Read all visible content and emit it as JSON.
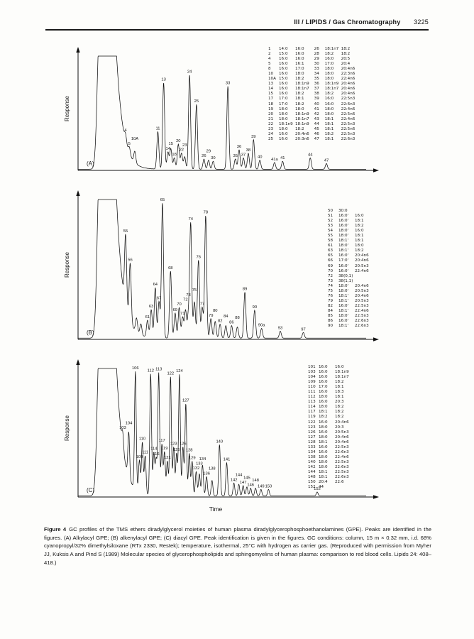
{
  "page": {
    "header": {
      "title": "III / LIPIDS / Gas Chromatography",
      "page_number": "3225"
    },
    "time_axis_label": "Time",
    "caption": {
      "label": "Figure 4",
      "text": "GC profiles of the TMS ethers diradylglycerol moieties of human plasma diradylglycerophosphoethanolamines (GPE). Peaks are identified in the figures. (A) Alkylacyl GPE; (B) alkenylacyl GPE; (C) diacyl GPE. Peak identification is given in the figures. GC conditions: column, 15 m × 0.32 mm, i.d. 68% cyanopropyl/32% dimethylsiloxane (RTx 2330, Restek); temperature, isothermal, 25°C with hydrogen as carrier gas. (Reproduced with permission from Myher JJ, Kuksis A and Pind S (1989) Molecular species of glycerophospholipids and sphingomyelins of human plasma: comparison to red blood cells. Lipids 24: 408–418.)"
    }
  },
  "chart_data": [
    {
      "type": "line",
      "panel": "A",
      "panel_label": "(A)",
      "series_name": "Alkylacyl GPE",
      "ylabel": "Response",
      "xlabel": "Time",
      "peak_sigma": 0.0035,
      "peaks_schema": [
        "x_fraction_of_axis",
        "height_fraction_of_plot",
        "peak_number"
      ],
      "peaks": [
        [
          0.165,
          0.07,
          "4"
        ],
        [
          0.178,
          0.06,
          "5"
        ],
        [
          0.197,
          0.1,
          "10A"
        ],
        [
          0.277,
          0.33,
          "11"
        ],
        [
          0.297,
          0.76,
          "13"
        ],
        [
          0.312,
          0.15,
          "14"
        ],
        [
          0.322,
          0.18,
          "15"
        ],
        [
          0.334,
          0.1,
          "18"
        ],
        [
          0.348,
          0.22,
          "20"
        ],
        [
          0.359,
          0.14,
          "22"
        ],
        [
          0.37,
          0.11,
          "23"
        ],
        [
          0.387,
          0.83,
          "24"
        ],
        [
          0.411,
          0.57,
          "25"
        ],
        [
          0.437,
          0.09,
          "26"
        ],
        [
          0.453,
          0.08,
          "29"
        ],
        [
          0.469,
          0.07,
          "30"
        ],
        [
          0.52,
          0.73,
          "33"
        ],
        [
          0.546,
          0.09,
          "35"
        ],
        [
          0.559,
          0.17,
          "36"
        ],
        [
          0.574,
          0.1,
          "37"
        ],
        [
          0.591,
          0.14,
          "38"
        ],
        [
          0.609,
          0.26,
          "39"
        ],
        [
          0.631,
          0.08,
          "40"
        ],
        [
          0.682,
          0.06,
          "41a"
        ],
        [
          0.71,
          0.07,
          "41"
        ],
        [
          0.806,
          0.1,
          "44"
        ],
        [
          0.862,
          0.05,
          "47"
        ]
      ],
      "legend": {
        "columns": [
          [
            [
              "1",
              "14:0",
              "16:0"
            ],
            [
              "2",
              "15:0",
              "16:0"
            ],
            [
              "4",
              "16:0",
              "16:0"
            ],
            [
              "5",
              "16:0",
              "16:1"
            ],
            [
              "8",
              "16:0",
              "17:0"
            ],
            [
              "10",
              "16:0",
              "18:0"
            ],
            [
              "10A",
              "15:0",
              "18:2"
            ],
            [
              "13",
              "16:0",
              "18:1n9"
            ],
            [
              "14",
              "16:0",
              "18:1n7"
            ],
            [
              "15",
              "16:0",
              "18:2"
            ],
            [
              "17",
              "17:0",
              "18:1"
            ],
            [
              "18",
              "17:0",
              "18:2"
            ],
            [
              "19",
              "18:0",
              "18:0"
            ],
            [
              "20",
              "18:0",
              "18:1n9"
            ],
            [
              "21",
              "18:0",
              "18:1n7"
            ],
            [
              "22",
              "18:1n9",
              "18:1n9"
            ],
            [
              "23",
              "18:0",
              "18:2"
            ],
            [
              "24",
              "16:0",
              "20:4n6"
            ],
            [
              "25",
              "16:0",
              "20:3n6"
            ]
          ],
          [
            [
              "26",
              "18:1n7",
              "18:2"
            ],
            [
              "28",
              "18:2",
              "18:2"
            ],
            [
              "29",
              "16:0",
              "20:5"
            ],
            [
              "30",
              "17:0",
              "20:4"
            ],
            [
              "33",
              "18:0",
              "20:4n6"
            ],
            [
              "34",
              "18:0",
              "22:3n6"
            ],
            [
              "35",
              "18:0",
              "22:4n6"
            ],
            [
              "36",
              "18:1n9",
              "20:4n6"
            ],
            [
              "37",
              "18:1n7",
              "20:4n6"
            ],
            [
              "38",
              "18:2",
              "20:4n6"
            ],
            [
              "39",
              "16:0",
              "22:5n3"
            ],
            [
              "40",
              "16:0",
              "22:6n3"
            ],
            [
              "41",
              "18:0",
              "22:4n6"
            ],
            [
              "42",
              "18:0",
              "22:5n6"
            ],
            [
              "43",
              "18:1",
              "22:4n6"
            ],
            [
              "44",
              "18:1",
              "22:5n3"
            ],
            [
              "45",
              "18:1",
              "22:5n6"
            ],
            [
              "46",
              "18:2",
              "22:5n3"
            ],
            [
              "47",
              "18:1",
              "22:6n3"
            ]
          ]
        ]
      }
    },
    {
      "type": "line",
      "panel": "B",
      "panel_label": "(B)",
      "series_name": "Alkenylacyl GPE",
      "ylabel": "Response",
      "xlabel": "Time",
      "peak_sigma": 0.0035,
      "peaks_schema": [
        "x_fraction_of_axis",
        "height_fraction_of_plot",
        "peak_number"
      ],
      "peaks": [
        [
          0.165,
          0.5,
          "55"
        ],
        [
          0.181,
          0.42,
          "56"
        ],
        [
          0.203,
          0.1,
          ""
        ],
        [
          0.218,
          0.08,
          ""
        ],
        [
          0.241,
          0.12,
          "61"
        ],
        [
          0.254,
          0.2,
          "63"
        ],
        [
          0.268,
          0.36,
          "64"
        ],
        [
          0.281,
          0.26,
          "67"
        ],
        [
          0.293,
          0.97,
          "65"
        ],
        [
          0.321,
          0.48,
          "68"
        ],
        [
          0.337,
          0.18,
          "69"
        ],
        [
          0.351,
          0.22,
          "70"
        ],
        [
          0.363,
          0.15,
          "71"
        ],
        [
          0.373,
          0.2,
          "72"
        ],
        [
          0.383,
          0.16,
          "73"
        ],
        [
          0.391,
          0.82,
          "74"
        ],
        [
          0.404,
          0.26,
          "75"
        ],
        [
          0.418,
          0.56,
          "76"
        ],
        [
          0.431,
          0.22,
          "77"
        ],
        [
          0.443,
          0.88,
          "78"
        ],
        [
          0.461,
          0.14,
          "79"
        ],
        [
          0.476,
          0.12,
          "80"
        ],
        [
          0.493,
          0.1,
          "82"
        ],
        [
          0.513,
          0.09,
          "84"
        ],
        [
          0.533,
          0.09,
          "86"
        ],
        [
          0.553,
          0.08,
          "88"
        ],
        [
          0.579,
          0.33,
          "89"
        ],
        [
          0.613,
          0.2,
          "90"
        ],
        [
          0.637,
          0.07,
          "90a"
        ],
        [
          0.702,
          0.05,
          "93"
        ],
        [
          0.782,
          0.04,
          "97"
        ]
      ],
      "legend": {
        "columns": [
          [
            [
              "50",
              "30:0",
              ""
            ],
            [
              "51",
              "16:0'",
              "16:0"
            ],
            [
              "52",
              "16:0'",
              "18:1"
            ],
            [
              "53",
              "16:0'",
              "18:2"
            ],
            [
              "54",
              "18:0'",
              "16:0"
            ],
            [
              "55",
              "18:0'",
              "18:1"
            ],
            [
              "58",
              "18:1'",
              "18:1"
            ],
            [
              "61",
              "18:0'",
              "18:0"
            ],
            [
              "63",
              "18:1'",
              "18:2"
            ],
            [
              "65",
              "16:0'",
              "20:4n6"
            ],
            [
              "66",
              "17:0'",
              "20:4n6"
            ],
            [
              "69",
              "16:0'",
              "20:5n3"
            ],
            [
              "70",
              "16:0'",
              "22:4n6"
            ],
            [
              "72",
              "38(0,1)",
              ""
            ],
            [
              "73",
              "38(1,1)",
              ""
            ],
            [
              "74",
              "18:0'",
              "20:4n6"
            ],
            [
              "75",
              "18:0'",
              "20:5n3"
            ],
            [
              "76",
              "18:1'",
              "20:4n6"
            ],
            [
              "79",
              "18:1'",
              "20:5n3"
            ],
            [
              "82",
              "16:0'",
              "22:5n3"
            ],
            [
              "84",
              "18:1'",
              "22:4n6"
            ],
            [
              "85",
              "18:0'",
              "22:5n3"
            ],
            [
              "86",
              "16:0'",
              "22:6n3"
            ],
            [
              "90",
              "18:1'",
              "22:6n3"
            ]
          ]
        ]
      }
    },
    {
      "type": "line",
      "panel": "C",
      "panel_label": "(C)",
      "series_name": "Diacyl GPE",
      "ylabel": "Response",
      "xlabel": "Time",
      "peak_sigma": 0.003,
      "peaks_schema": [
        "x_fraction_of_axis",
        "height_fraction_of_plot",
        "peak_number"
      ],
      "peaks": [
        [
          0.155,
          0.12,
          "103"
        ],
        [
          0.176,
          0.35,
          "104"
        ],
        [
          0.199,
          0.92,
          "106"
        ],
        [
          0.213,
          0.25,
          "109"
        ],
        [
          0.223,
          0.4,
          "110"
        ],
        [
          0.233,
          0.3,
          "111"
        ],
        [
          0.252,
          0.95,
          "112"
        ],
        [
          0.263,
          0.33,
          "114"
        ],
        [
          0.271,
          0.28,
          "116"
        ],
        [
          0.28,
          0.96,
          "113"
        ],
        [
          0.291,
          0.4,
          "117"
        ],
        [
          0.3,
          0.34,
          "119"
        ],
        [
          0.31,
          0.27,
          "121"
        ],
        [
          0.321,
          0.93,
          "122"
        ],
        [
          0.332,
          0.38,
          "123"
        ],
        [
          0.342,
          0.33,
          "125"
        ],
        [
          0.352,
          0.95,
          "124"
        ],
        [
          0.364,
          0.38,
          "126"
        ],
        [
          0.374,
          0.72,
          "127"
        ],
        [
          0.386,
          0.33,
          "128"
        ],
        [
          0.396,
          0.27,
          "129"
        ],
        [
          0.41,
          0.19,
          "132"
        ],
        [
          0.421,
          0.17,
          "133"
        ],
        [
          0.432,
          0.24,
          "134"
        ],
        [
          0.446,
          0.15,
          "136"
        ],
        [
          0.465,
          0.12,
          "138"
        ],
        [
          0.491,
          0.4,
          "140"
        ],
        [
          0.516,
          0.26,
          "141"
        ],
        [
          0.541,
          0.1,
          "142"
        ],
        [
          0.558,
          0.09,
          "144"
        ],
        [
          0.573,
          0.08,
          "147"
        ],
        [
          0.586,
          0.07,
          "145"
        ],
        [
          0.599,
          0.06,
          "146"
        ],
        [
          0.616,
          0.06,
          "148"
        ],
        [
          0.635,
          0.05,
          "149"
        ],
        [
          0.661,
          0.05,
          "150"
        ],
        [
          0.83,
          0.03,
          "152"
        ]
      ],
      "legend": {
        "columns": [
          [
            [
              "101",
              "16:0",
              "16:0"
            ],
            [
              "103",
              "16:0",
              "18:1n9"
            ],
            [
              "104",
              "16:0",
              "18:1n7"
            ],
            [
              "109",
              "16:0",
              "18:2"
            ],
            [
              "110",
              "17:0",
              "18:1"
            ],
            [
              "111",
              "16:0",
              "18:3"
            ],
            [
              "112",
              "18:0",
              "18:1"
            ],
            [
              "113",
              "16:0",
              "20:3"
            ],
            [
              "114",
              "18:0",
              "18:2"
            ],
            [
              "117",
              "18:1",
              "18:2"
            ],
            [
              "119",
              "18:2",
              "18:2"
            ],
            [
              "122",
              "16:0",
              "20:4n6"
            ],
            [
              "123",
              "18:0",
              "20:3"
            ],
            [
              "126",
              "16:0",
              "20:5n3"
            ],
            [
              "127",
              "18:0",
              "20:4n6"
            ],
            [
              "128",
              "18:1",
              "20:4n6"
            ],
            [
              "133",
              "16:0",
              "22:5n3"
            ],
            [
              "134",
              "16:0",
              "22:6n3"
            ],
            [
              "138",
              "18:0",
              "22:4n6"
            ],
            [
              "140",
              "18:0",
              "22:5n3"
            ],
            [
              "142",
              "18:0",
              "22:6n3"
            ],
            [
              "144",
              "18:1",
              "22:5n3"
            ],
            [
              "148",
              "18:1",
              "22:6n3"
            ],
            [
              "150",
              "20:4",
              "22:6"
            ],
            [
              "152",
              "44",
              ""
            ]
          ]
        ]
      }
    }
  ]
}
